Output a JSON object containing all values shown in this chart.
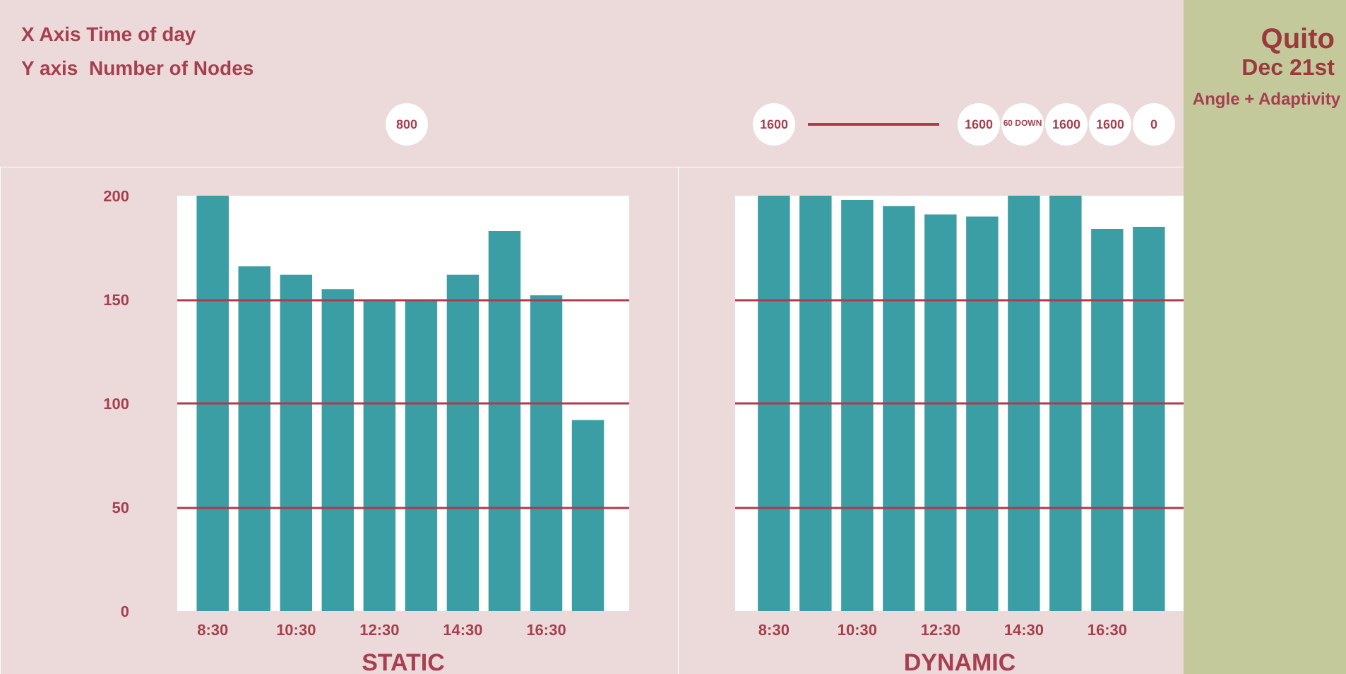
{
  "chart_data": [
    {
      "type": "bar",
      "title": "X Axis Time of day",
      "subtitle": "Y axis  Number of Nodes",
      "xlabel": "STATIC",
      "categories": [
        "8:30",
        null,
        "10:30",
        null,
        "12:30",
        null,
        "14:30",
        null,
        "16:30",
        null
      ],
      "values": [
        200,
        166,
        162,
        155,
        150,
        150,
        162,
        183,
        152,
        92
      ],
      "color": "#3b9ea5",
      "ylim": [
        0,
        200
      ],
      "yticks": [
        0,
        50,
        100,
        150,
        200
      ],
      "grid": "y",
      "annotations": [
        "800"
      ]
    },
    {
      "type": "bar",
      "xlabel": "DYNAMIC",
      "categories": [
        "8:30",
        null,
        "10:30",
        null,
        "12:30",
        null,
        "14:30",
        null,
        "16:30",
        null
      ],
      "values": [
        200,
        200,
        198,
        195,
        191,
        190,
        200,
        200,
        184,
        185
      ],
      "color": "#3b9ea5",
      "ylim": [
        0,
        200
      ],
      "yticks": [
        0,
        50,
        100,
        150,
        200
      ],
      "grid": "y",
      "tick_labels": "x",
      "annotations": [
        "Quito",
        "Dec 21st",
        "Angle + Adaptivity",
        "1600",
        "1600",
        "60 DOWN",
        "1600",
        "1600",
        "0"
      ]
    }
  ]
}
